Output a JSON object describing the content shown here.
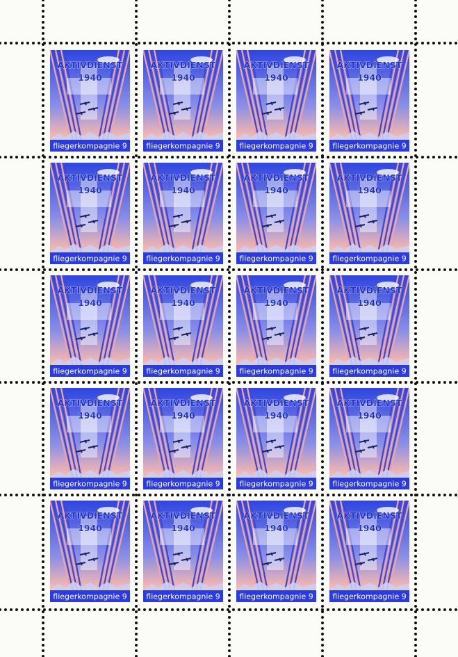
{
  "stamps": [
    {
      "title": "AKTIVDIENST",
      "year": "1940",
      "caption": "fliegerkompagnie 9"
    },
    {
      "title": "AKTIVDIENST",
      "year": "1940",
      "caption": "fliegerkompagnie 9"
    },
    {
      "title": "AKTIVDIENST",
      "year": "1940",
      "caption": "fliegerkompagnie 9"
    },
    {
      "title": "AKTIVDIENST",
      "year": "1940",
      "caption": "fliegerkompagnie 9"
    },
    {
      "title": "AKTIVDIENST",
      "year": "1940",
      "caption": "fliegerkompagnie 9"
    },
    {
      "title": "AKTIVDIENST",
      "year": "1940",
      "caption": "fliegerkompagnie 9"
    },
    {
      "title": "AKTIVDIENST",
      "year": "1940",
      "caption": "fliegerkompagnie 9"
    },
    {
      "title": "AKTIVDIENST",
      "year": "1940",
      "caption": "fliegerkompagnie 9"
    },
    {
      "title": "AKTIVDIENST",
      "year": "1940",
      "caption": "fliegerkompagnie 9"
    },
    {
      "title": "AKTIVDIENST",
      "year": "1940",
      "caption": "fliegerkompagnie 9"
    },
    {
      "title": "AKTIVDIENST",
      "year": "1940",
      "caption": "fliegerkompagnie 9"
    },
    {
      "title": "AKTIVDIENST",
      "year": "1940",
      "caption": "fliegerkompagnie 9"
    },
    {
      "title": "AKTIVDIENST",
      "year": "1940",
      "caption": "fliegerkompagnie 9"
    },
    {
      "title": "AKTIVDIENST",
      "year": "1940",
      "caption": "fliegerkompagnie 9"
    },
    {
      "title": "AKTIVDIENST",
      "year": "1940",
      "caption": "fliegerkompagnie 9"
    },
    {
      "title": "AKTIVDIENST",
      "year": "1940",
      "caption": "fliegerkompagnie 9"
    },
    {
      "title": "AKTIVDIENST",
      "year": "1940",
      "caption": "fliegerkompagnie 9"
    },
    {
      "title": "AKTIVDIENST",
      "year": "1940",
      "caption": "fliegerkompagnie 9"
    },
    {
      "title": "AKTIVDIENST",
      "year": "1940",
      "caption": "fliegerkompagnie 9"
    },
    {
      "title": "AKTIVDIENST",
      "year": "1940",
      "caption": "fliegerkompagnie 9"
    }
  ]
}
